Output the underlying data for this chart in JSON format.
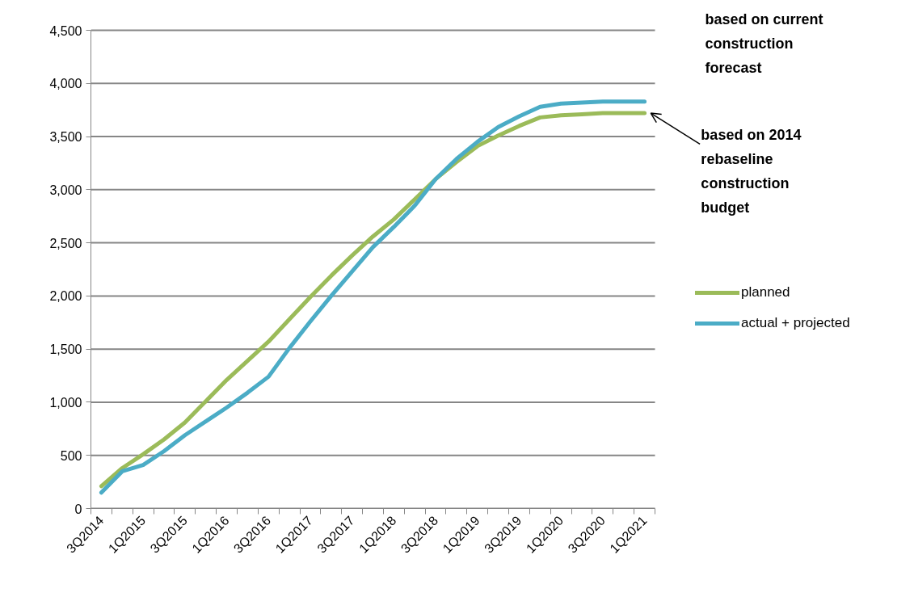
{
  "chart_data": {
    "type": "line",
    "categories": [
      "3Q2014",
      null,
      "1Q2015",
      null,
      "3Q2015",
      null,
      "1Q2016",
      null,
      "3Q2016",
      null,
      "1Q2017",
      null,
      "3Q2017",
      null,
      "1Q2018",
      null,
      "3Q2018",
      null,
      "1Q2019",
      null,
      "3Q2019",
      null,
      "1Q2020",
      null,
      "3Q2020",
      null,
      "1Q2021"
    ],
    "series": [
      {
        "name": "planned",
        "color": "#9bbb59",
        "values": [
          210,
          380,
          510,
          650,
          810,
          1010,
          1210,
          1390,
          1570,
          1780,
          1990,
          2190,
          2380,
          2560,
          2720,
          2910,
          3100,
          3260,
          3410,
          3510,
          3600,
          3680,
          3700,
          3710,
          3720,
          3720,
          3720
        ]
      },
      {
        "name": "actual + projected",
        "color": "#4bacc6",
        "values": [
          150,
          350,
          410,
          540,
          690,
          820,
          950,
          1090,
          1240,
          1510,
          1760,
          2000,
          2230,
          2460,
          2650,
          2850,
          3100,
          3290,
          3450,
          3590,
          3690,
          3780,
          3810,
          3820,
          3830,
          3830,
          3830
        ]
      }
    ],
    "ylim": [
      0,
      4500
    ],
    "yticks": [
      {
        "value": 0,
        "label": "0"
      },
      {
        "value": 500,
        "label": "500"
      },
      {
        "value": 1000,
        "label": "1,000"
      },
      {
        "value": 1500,
        "label": "1,500"
      },
      {
        "value": 2000,
        "label": "2,000"
      },
      {
        "value": 2500,
        "label": "2,500"
      },
      {
        "value": 3000,
        "label": "3,000"
      },
      {
        "value": 3500,
        "label": "3,500"
      },
      {
        "value": 4000,
        "label": "4,000"
      },
      {
        "value": 4500,
        "label": "4,500"
      }
    ],
    "grid": "y",
    "legend": "right",
    "annotations": [
      "based on current construction forecast",
      {
        "text": "based on 2014 rebaseline construction budget",
        "x": "1Q2021",
        "y": 3720
      }
    ]
  }
}
